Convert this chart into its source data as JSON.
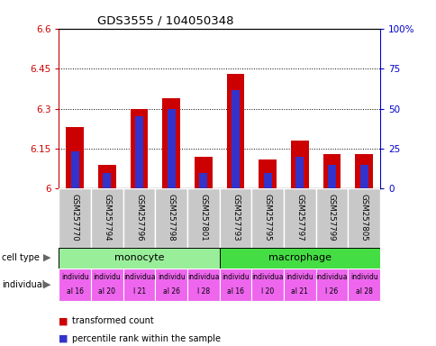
{
  "title": "GDS3555 / 104050348",
  "samples": [
    "GSM257770",
    "GSM257794",
    "GSM257796",
    "GSM257798",
    "GSM257801",
    "GSM257793",
    "GSM257795",
    "GSM257797",
    "GSM257799",
    "GSM257805"
  ],
  "red_values": [
    6.23,
    6.09,
    6.3,
    6.34,
    6.12,
    6.43,
    6.11,
    6.18,
    6.13,
    6.13
  ],
  "blue_values": [
    6.14,
    6.06,
    6.27,
    6.3,
    6.06,
    6.37,
    6.06,
    6.12,
    6.09,
    6.09
  ],
  "ymin": 6.0,
  "ymax": 6.6,
  "yticks": [
    6.0,
    6.15,
    6.3,
    6.45,
    6.6
  ],
  "ytick_labels": [
    "6",
    "6.15",
    "6.3",
    "6.45",
    "6.6"
  ],
  "right_ytick_labels": [
    "0",
    "25",
    "50",
    "75",
    "100%"
  ],
  "bar_width": 0.55,
  "blue_bar_width": 0.25,
  "red_color": "#CC0000",
  "blue_color": "#3333CC",
  "left_tick_color": "#CC0000",
  "right_tick_color": "#0000CC",
  "legend_red": "transformed count",
  "legend_blue": "percentile rank within the sample",
  "monocyte_color": "#99EE99",
  "macrophage_color": "#44DD44",
  "individual_color": "#EE66EE",
  "sample_bg_color": "#C8C8C8",
  "ind_labels_top": [
    "individu",
    "individu",
    "individua",
    "individu",
    "individua",
    "individu",
    "individua",
    "individu",
    "individua",
    "individu"
  ],
  "ind_labels_bot": [
    "al 16",
    "al 20",
    "l 21",
    "al 26",
    "l 28",
    "al 16",
    "l 20",
    "al 21",
    "l 26",
    "al 28"
  ],
  "figsize": [
    4.85,
    3.84
  ],
  "dpi": 100
}
